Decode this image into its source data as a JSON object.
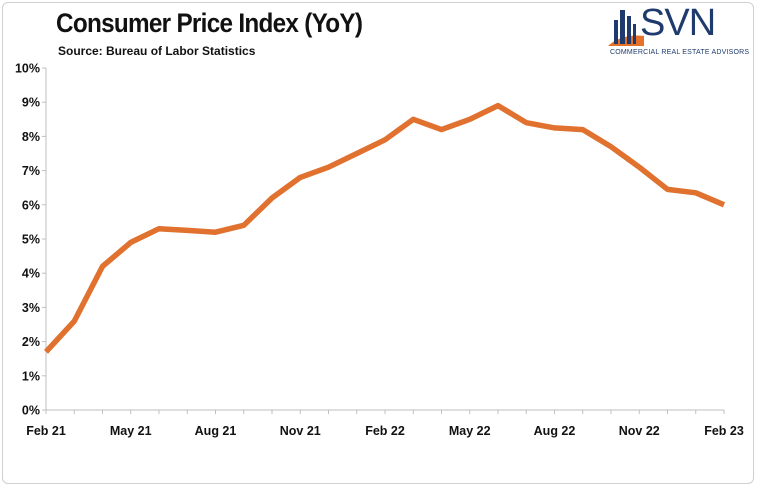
{
  "header": {
    "title": "Consumer Price Index (YoY)",
    "subtitle": "Source: Bureau of Labor Statistics"
  },
  "logo": {
    "wordmark": "SVN",
    "tagline": "COMMERCIAL REAL ESTATE ADVISORS",
    "colors": {
      "navy": "#1f3b6e",
      "orange": "#e8712a"
    }
  },
  "chart_data": {
    "type": "line",
    "title": "Consumer Price Index (YoY)",
    "subtitle": "Source: Bureau of Labor Statistics",
    "xlabel": "",
    "ylabel": "",
    "x": [
      "Feb 21",
      "Mar 21",
      "Apr 21",
      "May 21",
      "Jun 21",
      "Jul 21",
      "Aug 21",
      "Sep 21",
      "Oct 21",
      "Nov 21",
      "Dec 21",
      "Jan 22",
      "Feb 22",
      "Mar 22",
      "Apr 22",
      "May 22",
      "Jun 22",
      "Jul 22",
      "Aug 22",
      "Sep 22",
      "Oct 22",
      "Nov 22",
      "Dec 22",
      "Jan 23",
      "Feb 23"
    ],
    "x_tick_labels": [
      "Feb 21",
      "May 21",
      "Aug 21",
      "Nov 21",
      "Feb 22",
      "May 22",
      "Aug 22",
      "Nov 22",
      "Feb 23"
    ],
    "series": [
      {
        "values": [
          1.7,
          2.6,
          4.2,
          4.9,
          5.3,
          5.25,
          5.2,
          5.4,
          6.2,
          6.8,
          7.1,
          7.5,
          7.9,
          8.5,
          8.2,
          8.5,
          8.9,
          8.4,
          8.25,
          8.2,
          7.7,
          7.1,
          6.45,
          6.35,
          6.0
        ],
        "color": "#e0712e"
      }
    ],
    "y_tick_labels": [
      "0%",
      "1%",
      "2%",
      "3%",
      "4%",
      "5%",
      "6%",
      "7%",
      "8%",
      "9%",
      "10%"
    ],
    "ylim": [
      0,
      10
    ],
    "grid": false,
    "legend": "none"
  }
}
